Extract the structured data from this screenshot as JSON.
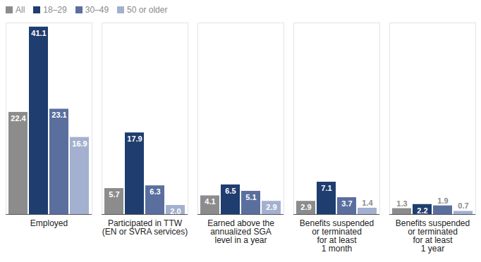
{
  "chart_data": {
    "type": "bar",
    "categories": [
      "Employed",
      "Participated in TTW\n(EN or SVRA services)",
      "Earned above the\nannualized SGA\nlevel in a year",
      "Benefits suspended\nor terminated\nfor at least\n1 month",
      "Benefits suspended\nor terminated\nfor at least\n1 year"
    ],
    "series": [
      {
        "name": "All",
        "color": "#8c8c8c",
        "values": [
          22.4,
          5.7,
          4.1,
          2.9,
          1.3
        ],
        "value_labels": [
          "22.4",
          "5.7",
          "4.1",
          "2.9",
          "1.3"
        ]
      },
      {
        "name": "18–29",
        "color": "#1f3d6e",
        "values": [
          41.1,
          17.9,
          6.5,
          7.1,
          2.2
        ],
        "value_labels": [
          "41.1",
          "17.9",
          "6.5",
          "7.1",
          "2.2"
        ]
      },
      {
        "name": "30–49",
        "color": "#5a6f9e",
        "values": [
          23.1,
          6.3,
          5.1,
          3.7,
          1.9
        ],
        "value_labels": [
          "23.1",
          "6.3",
          "5.1",
          "3.7",
          "1.9"
        ]
      },
      {
        "name": "50 or older",
        "color": "#a3b0cf",
        "values": [
          16.9,
          2.0,
          2.9,
          1.4,
          0.7
        ],
        "value_labels": [
          "16.9",
          "2.0",
          "2.9",
          "1.4",
          "0.7"
        ]
      }
    ],
    "ylim": [
      0,
      42
    ],
    "data_labels": true,
    "legend": "top-left",
    "tick_labels": "x"
  }
}
